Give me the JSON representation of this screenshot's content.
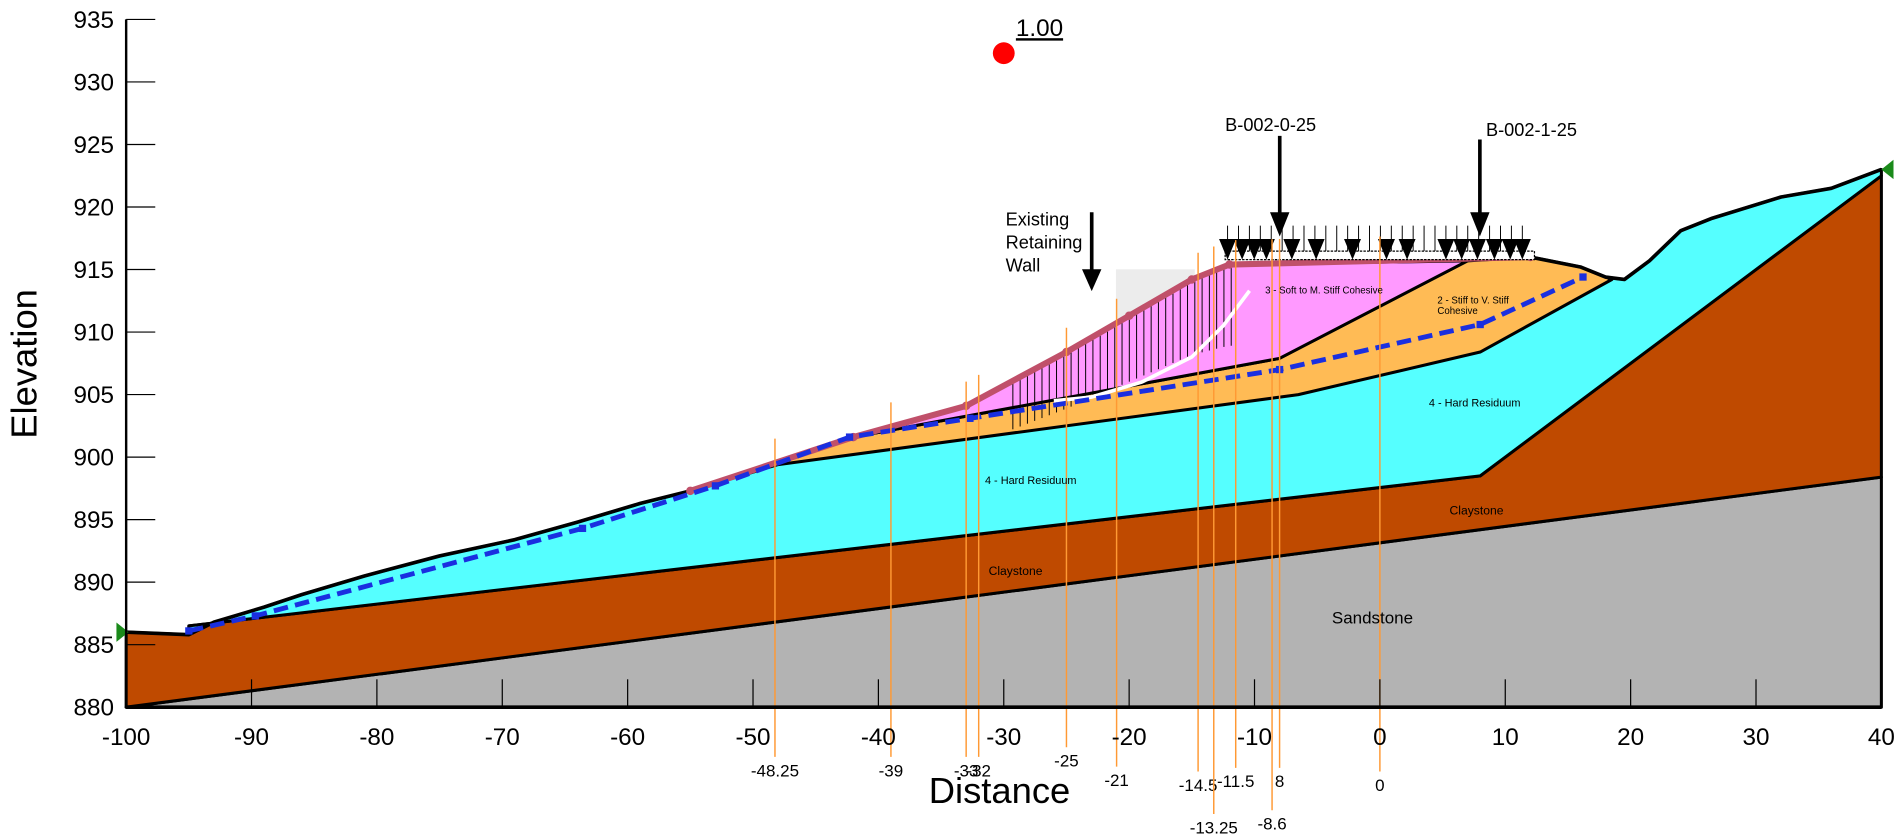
{
  "chart_data": {
    "type": "cross-section",
    "xlabel": "Distance",
    "ylabel": "Elevation",
    "xlim": [
      -100,
      40
    ],
    "ylim": [
      880,
      935
    ],
    "xticks": [
      -100,
      -90,
      -80,
      -70,
      -60,
      -50,
      -40,
      -30,
      -20,
      -10,
      0,
      10,
      20,
      30,
      40
    ],
    "yticks": [
      880,
      885,
      890,
      895,
      900,
      905,
      910,
      915,
      920,
      925,
      930,
      935
    ],
    "layers": [
      {
        "labels": [
          "Sandstone"
        ],
        "color": "#b3b3b3",
        "points": [
          [
            -100,
            880
          ],
          [
            40,
            880
          ],
          [
            40,
            898.4
          ]
        ]
      },
      {
        "labels": [
          "Claystone",
          "Claystone"
        ],
        "color": "#bf4a00",
        "points": [
          [
            -100,
            880
          ],
          [
            40,
            898.4
          ],
          [
            40,
            922.5
          ],
          [
            8,
            898.5
          ],
          [
            -95,
            886.5
          ],
          [
            -95,
            885.8
          ],
          [
            -100,
            886
          ]
        ]
      },
      {
        "labels": [
          "4 - Hard Residuum",
          "4 - Hard Residuum"
        ],
        "color": "#55ffff",
        "points": [
          [
            -95,
            886.5
          ],
          [
            8,
            898.5
          ],
          [
            40,
            922.5
          ],
          [
            40,
            923
          ],
          [
            36,
            921.5
          ],
          [
            32,
            920.8
          ],
          [
            26.5,
            919.1
          ],
          [
            24,
            918.1
          ],
          [
            21.5,
            915.7
          ],
          [
            19.5,
            914.2
          ],
          [
            18,
            914.4
          ],
          [
            16,
            915.2
          ],
          [
            12,
            916
          ],
          [
            -12,
            915.4
          ],
          [
            -15,
            914.2
          ],
          [
            -20,
            911.3
          ],
          [
            -25,
            908.4
          ],
          [
            -33,
            904.1
          ],
          [
            -42,
            901.6
          ],
          [
            -55,
            897.3
          ],
          [
            -59,
            896.3
          ],
          [
            -64,
            894.8
          ],
          [
            -69,
            893.4
          ],
          [
            -75,
            892.1
          ],
          [
            -81,
            890.5
          ],
          [
            -86,
            889
          ],
          [
            -89,
            888
          ],
          [
            -93,
            886.8
          ],
          [
            -95,
            885.8
          ]
        ]
      },
      {
        "labels": [
          "2 - Stiff to V. Stiff",
          "Cohesive"
        ],
        "color": "#ffbb55",
        "points": [
          [
            -55,
            897.3
          ],
          [
            -48,
            899.4
          ],
          [
            -6.5,
            905
          ],
          [
            8,
            908.4
          ],
          [
            18.5,
            914.2
          ],
          [
            18,
            914.4
          ],
          [
            16,
            915.2
          ],
          [
            12,
            916
          ],
          [
            7,
            915.7
          ],
          [
            -8,
            907.9
          ],
          [
            -42,
            901.6
          ]
        ]
      },
      {
        "labels": [
          "3 - Soft to M. Stiff Cohesive"
        ],
        "color": "#ff99ff",
        "points": [
          [
            -42,
            901.6
          ],
          [
            -8,
            907.9
          ],
          [
            7,
            915.7
          ],
          [
            -12,
            915.4
          ],
          [
            -15,
            914.2
          ],
          [
            -20,
            911.3
          ],
          [
            -25,
            908.4
          ],
          [
            -33,
            904.1
          ]
        ]
      }
    ],
    "surface": [
      [
        -100,
        886
      ],
      [
        -95,
        885.8
      ],
      [
        -93,
        886.8
      ],
      [
        -89,
        888
      ],
      [
        -86,
        889
      ],
      [
        -81,
        890.5
      ],
      [
        -75,
        892.1
      ],
      [
        -69,
        893.4
      ],
      [
        -64,
        894.8
      ],
      [
        -59,
        896.3
      ],
      [
        -55,
        897.3
      ],
      [
        -42,
        901.6
      ],
      [
        -33,
        904.1
      ],
      [
        -25,
        908.4
      ],
      [
        -20,
        911.3
      ],
      [
        -15,
        914.2
      ],
      [
        -12,
        915.4
      ],
      [
        12,
        916
      ],
      [
        16,
        915.2
      ],
      [
        18,
        914.4
      ],
      [
        19.5,
        914.2
      ],
      [
        21.5,
        915.7
      ],
      [
        24,
        918.1
      ],
      [
        26.5,
        919.1
      ],
      [
        32,
        920.8
      ],
      [
        36,
        921.5
      ],
      [
        40,
        923
      ]
    ],
    "facing": {
      "color": "#c0506a",
      "points": [
        [
          -55,
          897.3
        ],
        [
          -42,
          901.6
        ],
        [
          -33,
          904.1
        ],
        [
          -25,
          908.4
        ],
        [
          -20,
          911.3
        ],
        [
          -15,
          914.2
        ],
        [
          -12,
          915.4
        ],
        [
          12,
          916
        ]
      ]
    },
    "water_table": {
      "color": "#1a2fe0",
      "points": [
        [
          -95,
          886.1
        ],
        [
          -89.7,
          887.3
        ],
        [
          -63.6,
          894.3
        ],
        [
          -53,
          897.7
        ],
        [
          -42.3,
          901.6
        ],
        [
          -32.7,
          903.1
        ],
        [
          -8,
          907
        ],
        [
          8,
          910.6
        ],
        [
          16.2,
          914.4
        ]
      ]
    },
    "slip_surface": {
      "color": "#ffffff",
      "points": [
        [
          -10.4,
          913.3
        ],
        [
          -12.5,
          910.5
        ],
        [
          -15,
          908
        ],
        [
          -19,
          906
        ],
        [
          -23,
          904.8
        ],
        [
          -26,
          904.5
        ]
      ]
    },
    "critical_point": {
      "x": -30,
      "y": 932.3,
      "label": "1.00",
      "color": "#ff0000"
    },
    "sections": [
      -48.25,
      -39,
      -33,
      -32,
      -25,
      -21,
      -14.5,
      -13.25,
      -11.5,
      {
        "value": -8,
        "label": "8"
      },
      -8.6,
      0
    ],
    "annotations": {
      "retaining_wall": [
        "Existing",
        "Retaining",
        "Wall"
      ],
      "borings": [
        "B-002-0-25",
        "B-002-1-25"
      ]
    }
  }
}
